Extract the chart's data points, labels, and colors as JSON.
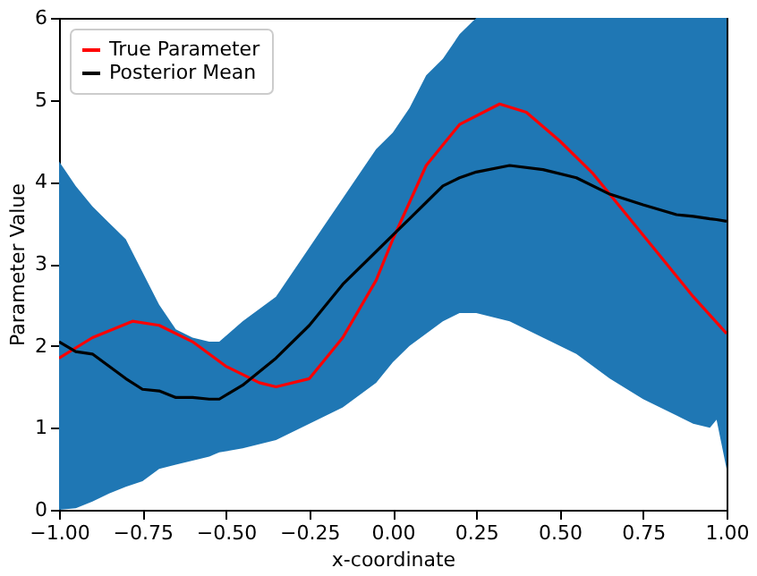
{
  "chart_data": {
    "type": "line",
    "xlabel": "x-coordinate",
    "ylabel": "Parameter Value",
    "xlim": [
      -1,
      1
    ],
    "ylim": [
      0,
      6
    ],
    "xticks": [
      {
        "value": -1,
        "label": "−1.00"
      },
      {
        "value": -0.75,
        "label": "−0.75"
      },
      {
        "value": -0.5,
        "label": "−0.50"
      },
      {
        "value": -0.25,
        "label": "−0.25"
      },
      {
        "value": 0,
        "label": "0.00"
      },
      {
        "value": 0.25,
        "label": "0.25"
      },
      {
        "value": 0.5,
        "label": "0.50"
      },
      {
        "value": 0.75,
        "label": "0.75"
      },
      {
        "value": 1,
        "label": "1.00"
      }
    ],
    "yticks": [
      0,
      1,
      2,
      3,
      4,
      5,
      6
    ],
    "legend": "top left",
    "series": [
      {
        "name": "True Parameter",
        "color": "#ff0000",
        "x": [
          -1,
          -0.9,
          -0.78,
          -0.7,
          -0.6,
          -0.5,
          -0.4,
          -0.35,
          -0.25,
          -0.15,
          -0.05,
          0,
          0.1,
          0.2,
          0.32,
          0.4,
          0.5,
          0.6,
          0.7,
          0.8,
          0.9,
          1.0
        ],
        "values": [
          1.85,
          2.1,
          2.3,
          2.25,
          2.05,
          1.75,
          1.55,
          1.5,
          1.6,
          2.1,
          2.8,
          3.3,
          4.2,
          4.7,
          4.95,
          4.85,
          4.5,
          4.1,
          3.6,
          3.1,
          2.6,
          2.15
        ]
      },
      {
        "name": "Posterior Mean",
        "color": "#000000",
        "colors": [
          "#1f77b4",
          "#1f77b4",
          "#1f77b4",
          "#1f77b4",
          "#1f77b4",
          "#1f77b4",
          "#1f77b4",
          "#1f77b4",
          "#1f77b4",
          "#1f77b4",
          "#1f77b4",
          "#1f77b4",
          "#1f77b4",
          "#1f77b4",
          "#1f77b4",
          "#1f77b4",
          "#1f77b4",
          "#1f77b4",
          "#1f77b4",
          "#1f77b4",
          "#1f77b4",
          "#1f77b4",
          "#1f77b4",
          "#1f77b4",
          "#1f77b4",
          "#1f77b4",
          "#1f77b4",
          "#1f77b4",
          "#1f77b4",
          "#1f77b4",
          "#1f77b4",
          "#1f77b4"
        ],
        "x": [
          -1,
          -0.95,
          -0.9,
          -0.85,
          -0.8,
          -0.75,
          -0.7,
          -0.65,
          -0.6,
          -0.55,
          -0.52,
          -0.45,
          -0.35,
          -0.25,
          -0.15,
          -0.05,
          0,
          0.05,
          0.1,
          0.15,
          0.2,
          0.25,
          0.35,
          0.45,
          0.55,
          0.65,
          0.75,
          0.85,
          0.9,
          0.95,
          0.97,
          1.0
        ],
        "values": [
          2.05,
          1.93,
          1.9,
          1.75,
          1.6,
          1.47,
          1.45,
          1.37,
          1.37,
          1.35,
          1.35,
          1.52,
          1.85,
          2.25,
          2.75,
          3.15,
          3.35,
          3.55,
          3.75,
          3.95,
          4.05,
          4.12,
          4.2,
          4.15,
          4.05,
          3.85,
          3.72,
          3.6,
          3.58,
          3.55,
          3.54,
          3.52
        ],
        "upper": [
          4.25,
          3.95,
          3.7,
          3.5,
          3.3,
          2.9,
          2.5,
          2.2,
          2.1,
          2.05,
          2.05,
          2.3,
          2.6,
          3.2,
          3.8,
          4.4,
          4.6,
          4.9,
          5.3,
          5.5,
          5.8,
          6,
          6,
          6,
          6,
          6,
          6,
          6,
          6,
          6,
          6,
          6
        ],
        "lower": [
          0,
          0.02,
          0.1,
          0.2,
          0.28,
          0.35,
          0.5,
          0.55,
          0.6,
          0.65,
          0.7,
          0.75,
          0.85,
          1.05,
          1.25,
          1.55,
          1.8,
          2.0,
          2.15,
          2.3,
          2.4,
          2.4,
          2.3,
          2.1,
          1.9,
          1.6,
          1.35,
          1.15,
          1.05,
          1.0,
          1.1,
          0.5
        ]
      }
    ]
  }
}
